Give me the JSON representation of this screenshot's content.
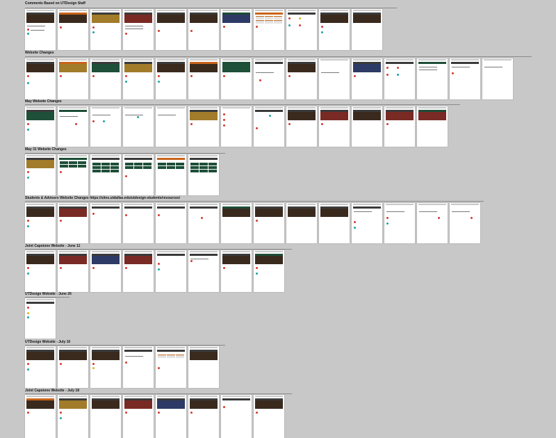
{
  "sections": [
    {
      "title": "Comments Based on UTDesign Staff",
      "frame_count": 11
    },
    {
      "title": "Website Changes",
      "frame_count": 15
    },
    {
      "title": "May Website Changes",
      "frame_count": 13
    },
    {
      "title": "May 31 Website Changes",
      "frame_count": 6
    },
    {
      "title": "Students & Advisers Website Changes   https://sites.utdallas.edu/utdesign-students/resources/",
      "frame_count": 14
    },
    {
      "title": "Joint Capstone Website - June 11",
      "frame_count": 8
    },
    {
      "title": "UTDesign Website - June 26",
      "frame_count": 1
    },
    {
      "title": "UTDesign Website - July 10",
      "frame_count": 6
    },
    {
      "title": "Joint Capstone Website - July 18",
      "frame_count": 9
    }
  ],
  "colors": {
    "canvas": "#c8c8c8",
    "frame": "#ffffff",
    "utd_orange": "#c8641b",
    "utd_green": "#1d4d36",
    "comment_red": "#d23a2f",
    "comment_teal": "#1aa3a0",
    "comment_yellow": "#e0b21c"
  }
}
